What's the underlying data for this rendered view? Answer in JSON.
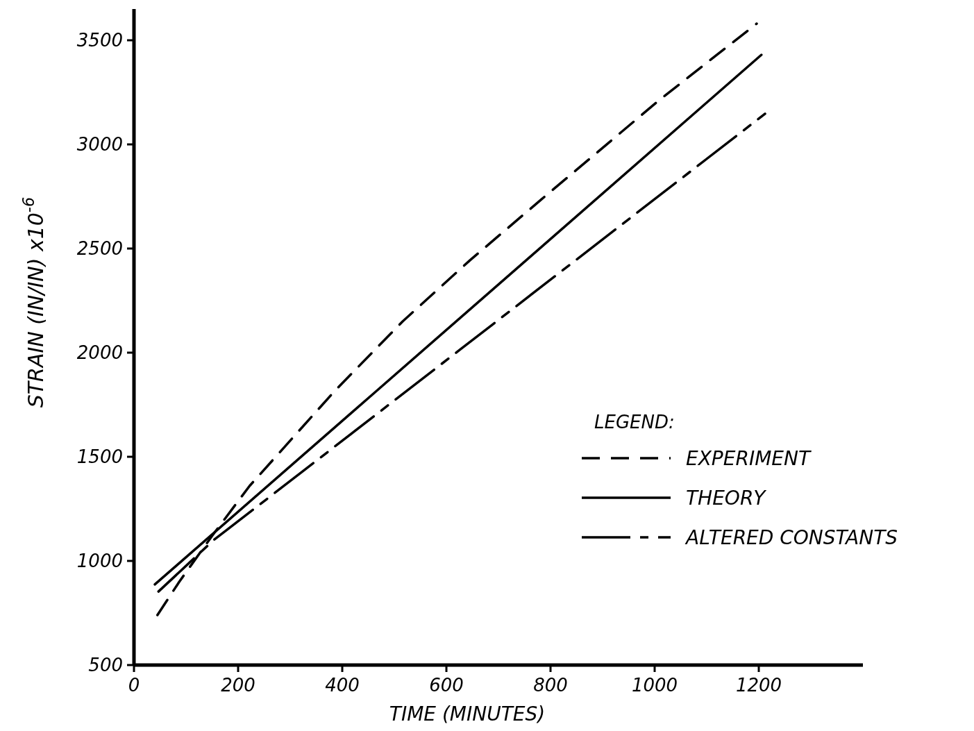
{
  "chart_data": {
    "type": "line",
    "xlabel": "TIME (MINUTES)",
    "ylabel": "STRAIN (IN/IN) x10$^{-6}$",
    "legend_title": "LEGEND:",
    "legend": "bottom right",
    "grid": false,
    "xlim": [
      0,
      1400
    ],
    "ylim": [
      500,
      3650
    ],
    "xticks": [
      0,
      200,
      400,
      600,
      800,
      1000,
      1200
    ],
    "yticks": [
      500,
      1000,
      1500,
      2000,
      2500,
      3000,
      3500
    ],
    "series": [
      {
        "name": "EXPERIMENT",
        "color": "#000000",
        "line_style": "dashed",
        "x": [
          45,
          87,
          149,
          222,
          387,
          516,
          645,
          783,
          1009,
          1196
        ],
        "values": [
          740,
          900,
          1117,
          1360,
          1820,
          2150,
          2443,
          2737,
          3213,
          3580
        ]
      },
      {
        "name": "THEORY",
        "color": "#000000",
        "line_style": "solid",
        "x": [
          40,
          463,
          1205
        ],
        "values": [
          887,
          1810,
          3430
        ]
      },
      {
        "name": "ALTERED CONSTANTS",
        "color": "#000000",
        "line_style": "dashdot",
        "x": [
          47,
          153,
          325,
          627,
          1212
        ],
        "values": [
          853,
          1100,
          1432,
          2016,
          3147
        ]
      }
    ]
  }
}
